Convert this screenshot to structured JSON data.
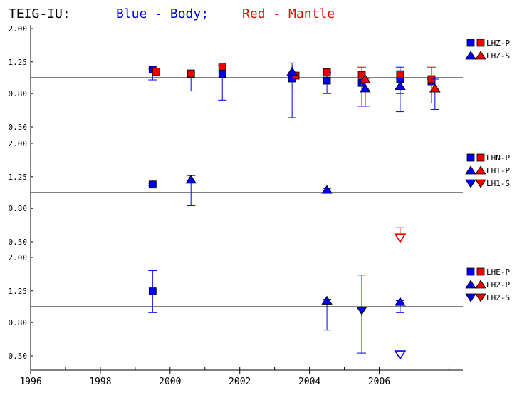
{
  "header": {
    "station": "TEIG-IU:",
    "blue_text": "Blue - Body;",
    "red_text": "Red - Mantle"
  },
  "colors": {
    "body": "#0000ee",
    "mantle": "#ee0000",
    "axis": "#000000"
  },
  "chart_data": {
    "type": "scatter",
    "x_ticks": [
      "1996",
      "1998",
      "2000",
      "2002",
      "2004",
      "2006"
    ],
    "xlim": [
      1996,
      2008.4
    ],
    "y_scale": "log",
    "y_ticks": [
      "0.50",
      "0.80",
      "1.25",
      "2.00"
    ],
    "panels": [
      {
        "id": "z",
        "ylim": [
          0.5,
          2.0
        ],
        "reference": 1.0,
        "legend": [
          {
            "marker": "square",
            "label": "LHZ-P"
          },
          {
            "marker": "triangle-up",
            "label": "LHZ-S"
          }
        ],
        "series": [
          {
            "source": "Body",
            "color": "#0000ee",
            "marker": "square",
            "points": [
              {
                "x": 1999.5,
                "y": 1.12,
                "lo": 0.97,
                "hi": 1.13
              },
              {
                "x": 2000.6,
                "y": 1.06,
                "lo": 0.83,
                "hi": 1.07
              },
              {
                "x": 2001.5,
                "y": 1.06,
                "lo": 0.73,
                "hi": 1.19
              },
              {
                "x": 2003.5,
                "y": 0.99,
                "lo": 0.57,
                "hi": 1.18
              },
              {
                "x": 2004.5,
                "y": 0.96,
                "lo": 0.8,
                "hi": 1.08
              },
              {
                "x": 2005.5,
                "y": 0.93,
                "lo": 0.67,
                "hi": 1.1
              },
              {
                "x": 2006.6,
                "y": 0.98,
                "lo": 0.62,
                "hi": 1.16
              },
              {
                "x": 2007.5,
                "y": 0.95,
                "lo": 0.7,
                "hi": 0.98
              }
            ]
          },
          {
            "source": "Mantle",
            "color": "#ee0000",
            "marker": "square",
            "points": [
              {
                "x": 1999.6,
                "y": 1.09
              },
              {
                "x": 2000.6,
                "y": 1.06
              },
              {
                "x": 2001.5,
                "y": 1.17
              },
              {
                "x": 2003.6,
                "y": 1.03
              },
              {
                "x": 2004.5,
                "y": 1.08
              },
              {
                "x": 2005.5,
                "y": 1.04,
                "lo": 0.67,
                "hi": 1.16
              },
              {
                "x": 2006.6,
                "y": 1.05
              },
              {
                "x": 2007.5,
                "y": 0.98,
                "lo": 0.7,
                "hi": 1.16
              }
            ]
          },
          {
            "source": "Body",
            "color": "#0000ee",
            "marker": "triangle-up",
            "points": [
              {
                "x": 2003.5,
                "y": 1.09,
                "lo": 0.98,
                "hi": 1.23
              },
              {
                "x": 2005.6,
                "y": 0.86,
                "lo": 0.67,
                "hi": 0.99
              },
              {
                "x": 2006.6,
                "y": 0.89,
                "lo": 0.8,
                "hi": 0.99
              },
              {
                "x": 2007.6,
                "y": 0.86,
                "lo": 0.64,
                "hi": 0.98
              }
            ]
          },
          {
            "source": "Mantle",
            "color": "#ee0000",
            "marker": "triangle-up",
            "points": [
              {
                "x": 2005.6,
                "y": 0.98
              },
              {
                "x": 2007.6,
                "y": 0.86
              }
            ]
          }
        ]
      },
      {
        "id": "n",
        "ylim": [
          0.5,
          2.0
        ],
        "reference": 1.0,
        "legend": [
          {
            "marker": "square",
            "label": "LHN-P"
          },
          {
            "marker": "triangle-up",
            "label": "LH1-P"
          },
          {
            "marker": "triangle-down",
            "label": "LH1-S"
          }
        ],
        "series": [
          {
            "source": "Body",
            "color": "#0000ee",
            "marker": "square",
            "points": [
              {
                "x": 1999.5,
                "y": 1.12,
                "lo": 1.1,
                "hi": 1.14
              }
            ]
          },
          {
            "source": "Body",
            "color": "#0000ee",
            "marker": "triangle-up",
            "points": [
              {
                "x": 2000.6,
                "y": 1.2,
                "lo": 0.83,
                "hi": 1.27
              },
              {
                "x": 2004.5,
                "y": 1.04,
                "lo": 1.02,
                "hi": 1.06
              }
            ]
          },
          {
            "source": "Mantle",
            "color": "#ee0000",
            "marker": "triangle-down",
            "open": true,
            "points": [
              {
                "x": 2006.6,
                "y": 0.53,
                "hi": 0.61
              }
            ]
          }
        ]
      },
      {
        "id": "e",
        "ylim": [
          0.5,
          2.0
        ],
        "reference": 1.0,
        "legend": [
          {
            "marker": "square",
            "label": "LHE-P"
          },
          {
            "marker": "triangle-up",
            "label": "LH2-P"
          },
          {
            "marker": "triangle-down",
            "label": "LH2-S"
          }
        ],
        "series": [
          {
            "source": "Body",
            "color": "#0000ee",
            "marker": "square",
            "points": [
              {
                "x": 1999.5,
                "y": 1.24,
                "lo": 0.92,
                "hi": 1.66
              }
            ]
          },
          {
            "source": "Body",
            "color": "#0000ee",
            "marker": "triangle-up",
            "points": [
              {
                "x": 2004.5,
                "y": 1.09,
                "lo": 0.72,
                "hi": 1.11
              },
              {
                "x": 2006.6,
                "y": 1.07,
                "lo": 0.92,
                "hi": 1.09
              }
            ]
          },
          {
            "source": "Body",
            "color": "#0000ee",
            "marker": "triangle-down",
            "points": [
              {
                "x": 2005.5,
                "y": 0.95,
                "lo": 0.52,
                "hi": 1.56
              }
            ]
          },
          {
            "source": "Body",
            "color": "#0000ee",
            "marker": "triangle-down",
            "open": true,
            "points": [
              {
                "x": 2006.6,
                "y": 0.51
              }
            ]
          }
        ]
      }
    ]
  }
}
